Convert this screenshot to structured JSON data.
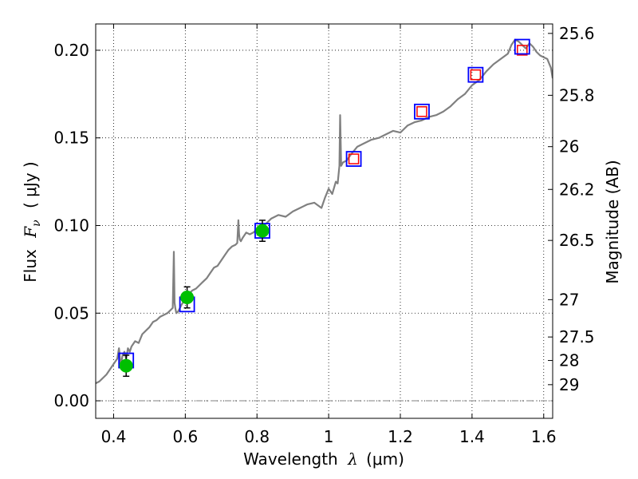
{
  "chart_data": {
    "type": "scatter",
    "xlabel": {
      "prefix": "Wavelength",
      "symbol": "λ",
      "units": "(μm)"
    },
    "ylabel": {
      "prefix": "Flux",
      "symbol": "F",
      "sub": "ν",
      "units": "( μJy )"
    },
    "y2label": "Magnitude (AB)",
    "xlim": [
      0.35,
      1.625
    ],
    "ylim": [
      -0.01,
      0.215
    ],
    "x_ticks": [
      0.4,
      0.6,
      0.8,
      1.0,
      1.2,
      1.4,
      1.6
    ],
    "x_tick_labels": [
      "0.4",
      "0.6",
      "0.8",
      "1",
      "1.2",
      "1.4",
      "1.6"
    ],
    "y_ticks": [
      0.0,
      0.05,
      0.1,
      0.15,
      0.2
    ],
    "y_tick_labels": [
      "0.00",
      "0.05",
      "0.10",
      "0.15",
      "0.20"
    ],
    "y2_ticks": [
      {
        "label": "25.6",
        "flux": 0.2096
      },
      {
        "label": "25.8",
        "flux": 0.1743
      },
      {
        "label": "26",
        "flux": 0.145
      },
      {
        "label": "26.2",
        "flux": 0.1206
      },
      {
        "label": "26.5",
        "flux": 0.0915
      },
      {
        "label": "27",
        "flux": 0.0577
      },
      {
        "label": "27.5",
        "flux": 0.0364
      },
      {
        "label": "28",
        "flux": 0.023
      },
      {
        "label": "29",
        "flux": 0.0092
      }
    ],
    "grid": true,
    "colors": {
      "model": "#808080",
      "observed_fill": "#00bf00",
      "model_box": "#0000ff",
      "predicted_box": "#ff0000",
      "errorbar": "#000000",
      "zero_line": "#808080"
    },
    "series": [
      {
        "name": "model spectrum",
        "kind": "line",
        "x": [
          0.35,
          0.36,
          0.37,
          0.38,
          0.39,
          0.4,
          0.41,
          0.415,
          0.42,
          0.425,
          0.43,
          0.435,
          0.44,
          0.445,
          0.45,
          0.46,
          0.47,
          0.48,
          0.49,
          0.5,
          0.51,
          0.52,
          0.53,
          0.54,
          0.55,
          0.56,
          0.565,
          0.568,
          0.57,
          0.572,
          0.575,
          0.58,
          0.59,
          0.6,
          0.61,
          0.62,
          0.63,
          0.64,
          0.65,
          0.66,
          0.67,
          0.68,
          0.69,
          0.7,
          0.71,
          0.72,
          0.73,
          0.74,
          0.745,
          0.748,
          0.75,
          0.752,
          0.755,
          0.76,
          0.77,
          0.78,
          0.79,
          0.8,
          0.82,
          0.84,
          0.86,
          0.88,
          0.9,
          0.92,
          0.94,
          0.96,
          0.98,
          0.99,
          1.0,
          1.01,
          1.02,
          1.025,
          1.03,
          1.032,
          1.035,
          1.04,
          1.05,
          1.06,
          1.08,
          1.1,
          1.12,
          1.14,
          1.16,
          1.18,
          1.2,
          1.22,
          1.24,
          1.26,
          1.28,
          1.3,
          1.32,
          1.34,
          1.36,
          1.38,
          1.4,
          1.42,
          1.44,
          1.46,
          1.48,
          1.5,
          1.51,
          1.52,
          1.53,
          1.54,
          1.55,
          1.56,
          1.57,
          1.58,
          1.59,
          1.6,
          1.61,
          1.62,
          1.625
        ],
        "y": [
          0.01,
          0.011,
          0.013,
          0.015,
          0.018,
          0.021,
          0.024,
          0.03,
          0.02,
          0.026,
          0.028,
          0.024,
          0.03,
          0.028,
          0.031,
          0.034,
          0.033,
          0.038,
          0.04,
          0.042,
          0.045,
          0.046,
          0.048,
          0.049,
          0.05,
          0.052,
          0.053,
          0.085,
          0.056,
          0.053,
          0.05,
          0.051,
          0.055,
          0.058,
          0.061,
          0.063,
          0.064,
          0.066,
          0.068,
          0.07,
          0.073,
          0.076,
          0.077,
          0.08,
          0.083,
          0.086,
          0.088,
          0.089,
          0.09,
          0.103,
          0.095,
          0.092,
          0.091,
          0.093,
          0.096,
          0.095,
          0.096,
          0.098,
          0.1,
          0.104,
          0.106,
          0.105,
          0.108,
          0.11,
          0.112,
          0.113,
          0.11,
          0.116,
          0.121,
          0.118,
          0.125,
          0.124,
          0.134,
          0.163,
          0.134,
          0.136,
          0.137,
          0.14,
          0.145,
          0.147,
          0.149,
          0.15,
          0.152,
          0.154,
          0.153,
          0.157,
          0.159,
          0.16,
          0.162,
          0.163,
          0.165,
          0.168,
          0.172,
          0.175,
          0.18,
          0.183,
          0.188,
          0.192,
          0.195,
          0.198,
          0.203,
          0.206,
          0.205,
          0.203,
          0.201,
          0.204,
          0.202,
          0.199,
          0.197,
          0.196,
          0.195,
          0.19,
          0.184
        ]
      },
      {
        "name": "observed photometry",
        "kind": "points",
        "x": [
          0.435,
          0.605,
          0.815
        ],
        "y": [
          0.02,
          0.059,
          0.097
        ],
        "yerr": [
          0.006,
          0.006,
          0.006
        ]
      },
      {
        "name": "model photometry",
        "kind": "box",
        "x": [
          0.435,
          0.605,
          0.815,
          1.07,
          1.26,
          1.41,
          1.54
        ],
        "y": [
          0.023,
          0.055,
          0.097,
          0.138,
          0.165,
          0.186,
          0.202
        ]
      },
      {
        "name": "predicted photometry",
        "kind": "box",
        "x": [
          1.07,
          1.26,
          1.41,
          1.54
        ],
        "y": [
          0.138,
          0.165,
          0.186,
          0.2
        ]
      }
    ]
  }
}
